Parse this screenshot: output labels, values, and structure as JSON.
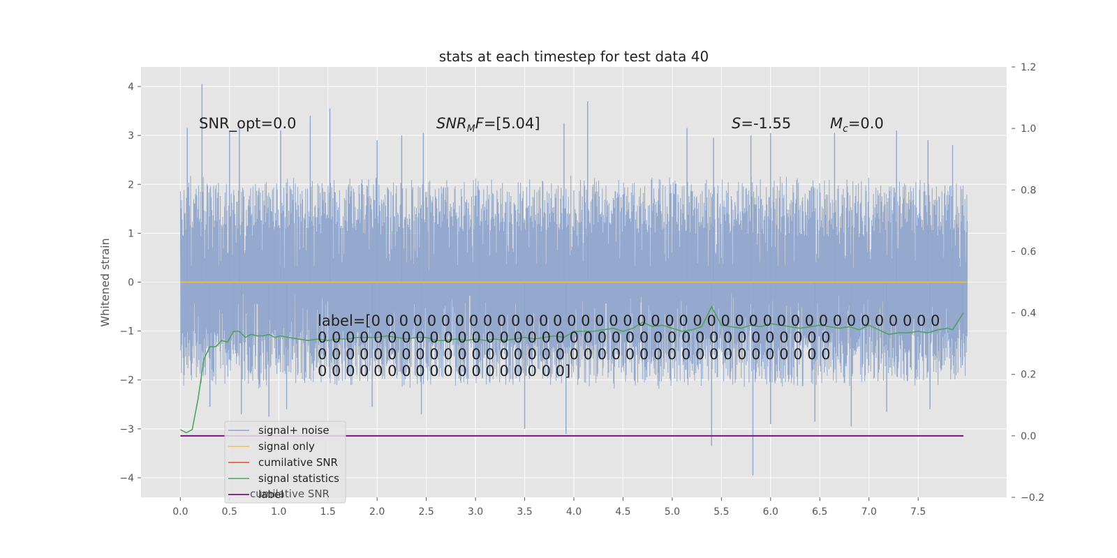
{
  "chart_data": {
    "type": "line",
    "title": "stats at each timestep for test data 40",
    "ylabel": "Whitened strain",
    "xlabel": "",
    "xlim": [
      -0.4,
      8.4
    ],
    "ylim": [
      -4.4,
      4.4
    ],
    "y2lim": [
      -0.2,
      1.2
    ],
    "grid": true,
    "x_ticks": [
      0.0,
      0.5,
      1.0,
      1.5,
      2.0,
      2.5,
      3.0,
      3.5,
      4.0,
      4.5,
      5.0,
      5.5,
      6.0,
      6.5,
      7.0,
      7.5
    ],
    "x_tick_labels": [
      "0.0",
      "0.5",
      "1.0",
      "1.5",
      "2.0",
      "2.5",
      "3.0",
      "3.5",
      "4.0",
      "4.5",
      "5.0",
      "5.5",
      "6.0",
      "6.5",
      "7.0",
      "7.5"
    ],
    "y_ticks": [
      4,
      3,
      2,
      1,
      0,
      -1,
      -2,
      -3,
      -4
    ],
    "y_tick_labels": [
      "4",
      "3",
      "2",
      "1",
      "0",
      "−1",
      "−2",
      "−3",
      "−4"
    ],
    "y2_ticks": [
      1.2,
      1.0,
      0.8,
      0.6,
      0.4,
      0.2,
      0.0,
      -0.2
    ],
    "y2_tick_labels": [
      "1.2",
      "1.0",
      "0.8",
      "0.6",
      "0.4",
      "0.2",
      "0.0",
      "−0.2"
    ],
    "noise_range": [
      0.0,
      8.0
    ],
    "noise_band": {
      "low": -2.0,
      "high": 2.0
    },
    "noise_spikes": [
      {
        "x": 0.22,
        "y": 4.05
      },
      {
        "x": 0.07,
        "y": 3.15
      },
      {
        "x": 0.5,
        "y": 3.1
      },
      {
        "x": 0.6,
        "y": 3.15
      },
      {
        "x": 1.02,
        "y": 3.1
      },
      {
        "x": 1.32,
        "y": 3.4
      },
      {
        "x": 1.52,
        "y": 3.55
      },
      {
        "x": 2.0,
        "y": 2.9
      },
      {
        "x": 2.25,
        "y": 3.0
      },
      {
        "x": 2.47,
        "y": 3.05
      },
      {
        "x": 3.9,
        "y": 3.25
      },
      {
        "x": 4.14,
        "y": 3.7
      },
      {
        "x": 5.15,
        "y": 3.15
      },
      {
        "x": 5.42,
        "y": 2.95
      },
      {
        "x": 5.8,
        "y": 3.0
      },
      {
        "x": 6.0,
        "y": 3.05
      },
      {
        "x": 6.65,
        "y": 3.05
      },
      {
        "x": 7.28,
        "y": 3.1
      },
      {
        "x": 7.6,
        "y": 2.9
      },
      {
        "x": 7.85,
        "y": 2.8
      },
      {
        "x": 0.3,
        "y": -2.55
      },
      {
        "x": 0.62,
        "y": -2.7
      },
      {
        "x": 0.9,
        "y": -2.75
      },
      {
        "x": 1.08,
        "y": -2.6
      },
      {
        "x": 1.95,
        "y": -2.55
      },
      {
        "x": 2.45,
        "y": -2.7
      },
      {
        "x": 3.5,
        "y": -3.0
      },
      {
        "x": 3.92,
        "y": -3.1
      },
      {
        "x": 5.4,
        "y": -3.35
      },
      {
        "x": 5.82,
        "y": -3.95
      },
      {
        "x": 6.0,
        "y": -2.9
      },
      {
        "x": 6.45,
        "y": -2.85
      },
      {
        "x": 6.82,
        "y": -2.95
      },
      {
        "x": 7.18,
        "y": -2.65
      },
      {
        "x": 7.62,
        "y": -2.6
      },
      {
        "x": 7.95,
        "y": -1.7
      }
    ],
    "series": [
      {
        "name": "signal+ noise",
        "color": "#8fa5cb"
      },
      {
        "name": "signal only",
        "color": "#f2c14e",
        "axis": "left",
        "x": [
          0.0,
          8.0
        ],
        "y": [
          0.0,
          0.0
        ]
      },
      {
        "name": "cumilative SNR",
        "color": "#e24a33"
      },
      {
        "name": "signal statistics",
        "color": "#4ca35a",
        "axis": "right",
        "x": [
          0.0,
          0.06,
          0.12,
          0.18,
          0.24,
          0.3,
          0.36,
          0.42,
          0.48,
          0.54,
          0.6,
          0.66,
          0.72,
          0.78,
          0.84,
          0.9,
          0.96,
          1.02,
          1.1,
          1.2,
          1.3,
          1.4,
          1.5,
          1.6,
          1.7,
          1.8,
          1.9,
          2.0,
          2.1,
          2.2,
          2.3,
          2.4,
          2.5,
          2.6,
          2.7,
          2.8,
          2.9,
          3.0,
          3.1,
          3.2,
          3.3,
          3.4,
          3.5,
          3.6,
          3.7,
          3.8,
          3.9,
          4.0,
          4.1,
          4.2,
          4.3,
          4.4,
          4.5,
          4.6,
          4.7,
          4.8,
          4.9,
          5.0,
          5.1,
          5.2,
          5.3,
          5.4,
          5.5,
          5.6,
          5.7,
          5.8,
          5.9,
          6.0,
          6.1,
          6.2,
          6.3,
          6.4,
          6.5,
          6.6,
          6.7,
          6.8,
          6.9,
          7.0,
          7.1,
          7.2,
          7.3,
          7.4,
          7.5,
          7.6,
          7.7,
          7.8,
          7.85,
          7.9,
          7.96
        ],
        "y": [
          0.02,
          0.01,
          0.02,
          0.12,
          0.25,
          0.29,
          0.29,
          0.31,
          0.305,
          0.34,
          0.34,
          0.32,
          0.33,
          0.325,
          0.325,
          0.33,
          0.32,
          0.325,
          0.32,
          0.315,
          0.31,
          0.315,
          0.31,
          0.315,
          0.315,
          0.32,
          0.32,
          0.32,
          0.325,
          0.32,
          0.315,
          0.32,
          0.32,
          0.31,
          0.31,
          0.315,
          0.31,
          0.315,
          0.31,
          0.315,
          0.31,
          0.315,
          0.32,
          0.315,
          0.32,
          0.325,
          0.32,
          0.34,
          0.34,
          0.34,
          0.345,
          0.35,
          0.34,
          0.35,
          0.37,
          0.355,
          0.36,
          0.35,
          0.34,
          0.345,
          0.355,
          0.42,
          0.36,
          0.355,
          0.35,
          0.36,
          0.355,
          0.365,
          0.36,
          0.355,
          0.35,
          0.355,
          0.36,
          0.355,
          0.35,
          0.355,
          0.345,
          0.36,
          0.345,
          0.33,
          0.335,
          0.335,
          0.34,
          0.335,
          0.345,
          0.35,
          0.345,
          0.37,
          0.4
        ]
      },
      {
        "name": "label",
        "color": "#7b0f7b",
        "axis": "right",
        "x": [
          0.0,
          7.96
        ],
        "y": [
          0.0,
          0.0
        ]
      }
    ],
    "legend": {
      "position": "lower-left",
      "entries": [
        "signal+ noise",
        "signal only",
        "cumilative SNR",
        "signal statistics",
        "label"
      ],
      "ghost_text": "cumilative SNR"
    },
    "annotations": {
      "snr_opt": "SNR_opt=0.0",
      "snr_mf_main": "SNR",
      "snr_mf_sub": "M",
      "snr_mf_rest": "F=[5.04]",
      "s_var": "S",
      "s_val": "=-1.55",
      "mc_var": "M",
      "mc_sub": "c",
      "mc_val": "=0.0",
      "label_lines": [
        "label=[0 0 0 0 0 0 0 0 0 0 0 0 0 0 0 0 0 0 0 0 0 0 0 0 0 0 0 0 0 0 0 0 0 0 0 0 0 0 0 0 0",
        " 0 0 0 0 0 0 0 0 0 0 0 0 0 0 0 0 0 0 0 0 0 0 0 0 0 0 0 0 0 0 0 0 0 0 0 0 0",
        " 0 0 0 0 0 0 0 0 0 0 0 0 0 0 0 0 0 0 0 0 0 0 0 0 0 0 0 0 0 0 0 0 0 0 0 0 0",
        " 0 0 0 0 0 0 0 0 0 0 0 0 0 0 0 0 0 0]"
      ]
    }
  }
}
